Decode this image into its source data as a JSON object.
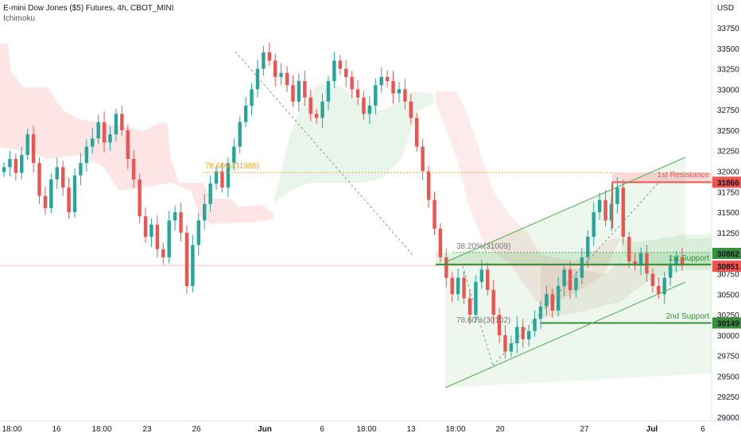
{
  "header": {
    "title": "E-mini Dow Jones ($5) Futures, 4h, CBOT_MINI",
    "indicator": "Ichimoku"
  },
  "axis": {
    "currency": "USD",
    "y_ticks": [
      33750,
      33500,
      33250,
      33000,
      32750,
      32500,
      32250,
      32000,
      31750,
      31500,
      31250,
      31000,
      30750,
      30500,
      30250,
      30000,
      29750,
      29500,
      29250,
      29000
    ],
    "x_ticks": [
      "18:00",
      "16",
      "18:00",
      "23",
      "26",
      "Jun",
      "6",
      "18:00",
      "13",
      "18:00",
      "20",
      "27",
      "Jul",
      "6"
    ]
  },
  "price_labels": {
    "resistance": "31866",
    "upper_support": "30862",
    "last_price": "30851",
    "second_support": "30149"
  },
  "annotations": {
    "first_resistance": "1st Resistance",
    "first_support": "1st Support",
    "second_support": "2nd Support",
    "fib_top": "78.60%(31985)",
    "fib_mid": "38.20%(31009)",
    "fib_low": "78.60%(30102)"
  },
  "colors": {
    "bull": "#26a69a",
    "bear": "#ef5350",
    "resistance": "#ef5350",
    "support": "#388e3c",
    "channel": "#4caf50",
    "fib": "#f5a623",
    "last_price": "#ef5350"
  },
  "chart_data": {
    "type": "candlestick",
    "title": "E-mini Dow Jones ($5) Futures, 4h, CBOT_MINI",
    "ylabel": "USD",
    "ylim": [
      29000,
      33900
    ],
    "levels": {
      "first_resistance": 31866,
      "first_support": 30862,
      "second_support": 30149,
      "last_price": 30851,
      "fib_78_6_top": 31985,
      "fib_38_2": 31009,
      "fib_78_6_low": 30102
    },
    "close_path": [
      32050,
      32150,
      31980,
      32200,
      32450,
      32100,
      31700,
      31550,
      31900,
      32050,
      31800,
      31500,
      31950,
      32100,
      32300,
      32400,
      32600,
      32350,
      32450,
      32700,
      32500,
      32150,
      31900,
      31450,
      31200,
      31350,
      31050,
      30950,
      31400,
      31500,
      31250,
      30600,
      31100,
      31400,
      31600,
      31850,
      32000,
      31800,
      32100,
      32300,
      32600,
      32800,
      33000,
      33250,
      33450,
      33350,
      33150,
      33200,
      33050,
      32850,
      33100,
      32900,
      32700,
      32650,
      32850,
      33100,
      33350,
      33250,
      33150,
      33000,
      32900,
      32700,
      32800,
      33050,
      33150,
      33100,
      32950,
      33000,
      32850,
      32650,
      32300,
      32000,
      31650,
      31300,
      30950,
      30700,
      30500,
      30700,
      30450,
      30250,
      30650,
      30800,
      30550,
      30250,
      30000,
      29800,
      29900,
      30100,
      29950,
      30050,
      30200,
      30350,
      30500,
      30300,
      30600,
      30800,
      30550,
      30700,
      30950,
      31200,
      31500,
      31650,
      31400,
      31600,
      31800,
      31200,
      30900,
      30850,
      31000,
      30750,
      30600,
      30500,
      30700,
      30850,
      30950,
      30851
    ]
  }
}
